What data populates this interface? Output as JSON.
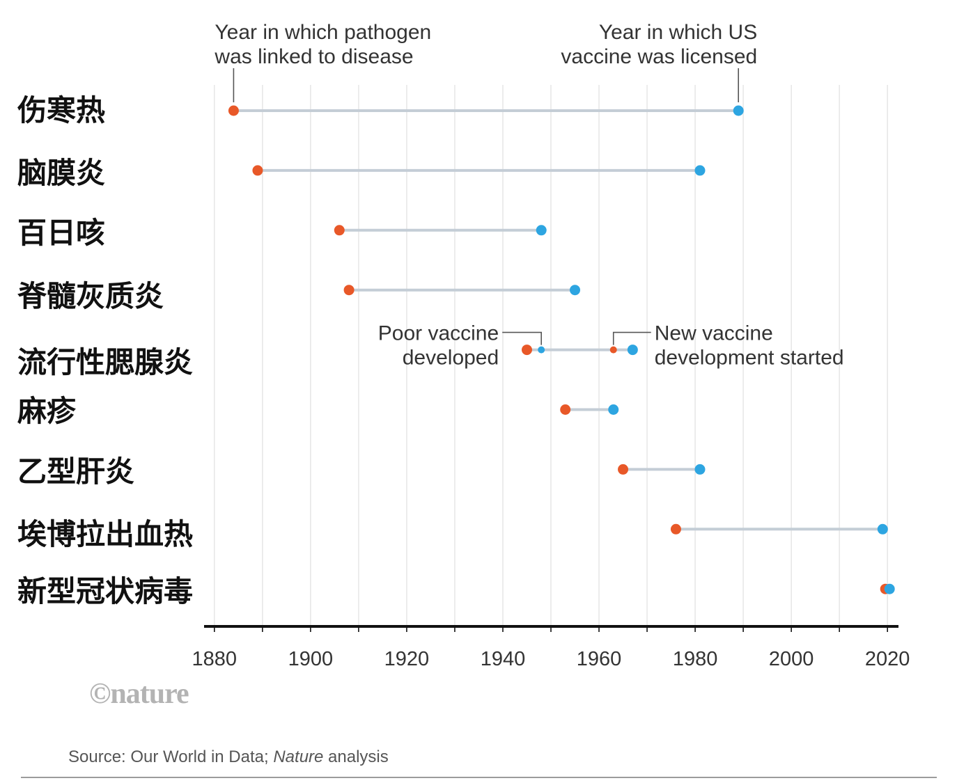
{
  "colors": {
    "gridline": "#E6E6E6",
    "axis": "#111111"
  },
  "logo": "©nature",
  "source": {
    "prefix": "Source: Our World in Data; ",
    "italic": "Nature",
    "suffix": " analysis"
  },
  "chart_data": {
    "type": "scatter",
    "categories": [
      "伤寒热",
      "脑膜炎",
      "百日咳",
      "脊髓灰质炎",
      "流行性腮腺炎",
      "麻疹",
      "乙型肝炎",
      "埃博拉出血热",
      "新型冠状病毒"
    ],
    "series": [
      {
        "label_lines": [
          "Year in which pathogen",
          "was linked to disease"
        ],
        "color": "#E85828",
        "values": [
          1884,
          1889,
          1906,
          1908,
          1945,
          1953,
          1965,
          1976,
          2020
        ]
      },
      {
        "label_lines": [
          "Year in which US",
          "vaccine was licensed"
        ],
        "color": "#2DA5E1",
        "values": [
          1989,
          1981,
          1948,
          1955,
          1967,
          1963,
          1981,
          2019,
          2020
        ]
      }
    ],
    "milestones": [
      {
        "category": "流行性腮腺炎",
        "year": 1948,
        "color": "#2DA5E1",
        "label_lines": [
          "Poor vaccine",
          "developed"
        ]
      },
      {
        "category": "流行性腮腺炎",
        "year": 1963,
        "color": "#E85828",
        "label_lines": [
          "New vaccine",
          "development started"
        ]
      }
    ],
    "xlim": [
      1878,
      2022
    ],
    "xticks": [
      1880,
      1900,
      1920,
      1940,
      1960,
      1980,
      2000,
      2020
    ],
    "grid": true,
    "connector_color": "#C4CDD6"
  }
}
